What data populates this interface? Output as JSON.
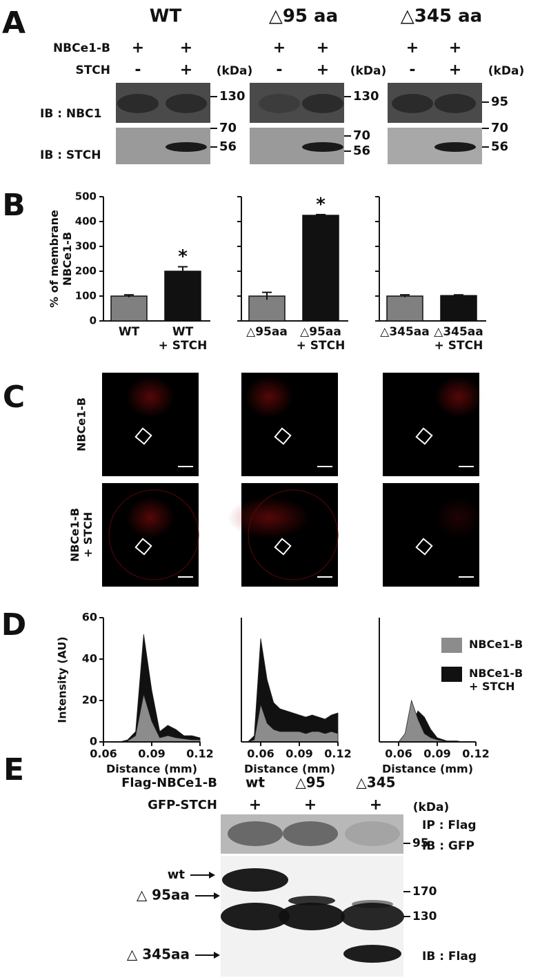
{
  "panel_labels": [
    "A",
    "B",
    "C",
    "D",
    "E"
  ],
  "panel_a": {
    "groups": [
      "WT",
      "△95 aa",
      "△345 aa"
    ],
    "row_labels": [
      "NBCe1-B",
      "STCH"
    ],
    "lanes": [
      [
        "+",
        "-"
      ],
      [
        "+",
        "+"
      ],
      [
        "+",
        "-"
      ],
      [
        "+",
        "+"
      ],
      [
        "+",
        "-"
      ],
      [
        "+",
        "+"
      ]
    ],
    "unit": "(kDa)",
    "blot_labels": [
      "IB : NBC1",
      "IB : STCH"
    ],
    "markers": [
      [
        130,
        70,
        56
      ],
      [
        130,
        70,
        56
      ],
      [
        95,
        70,
        56
      ]
    ]
  },
  "panel_c": {
    "row_labels": [
      "NBCe1-B",
      "NBCe1-B\n+ STCH"
    ]
  },
  "panel_e": {
    "row_labels": [
      "Flag-NBCe1-B",
      "GFP-STCH"
    ],
    "lanes": [
      [
        "wt",
        "+"
      ],
      [
        "△95",
        "+"
      ],
      [
        "△345",
        "+"
      ]
    ],
    "unit": "(kDa)",
    "top_blot_labels": [
      "IP : Flag",
      "IB : GFP"
    ],
    "top_markers": [
      95
    ],
    "bottom_blot_label": "IB : Flag",
    "bottom_markers": [
      170,
      130
    ],
    "band_labels": [
      "wt",
      "△ 95aa",
      "△ 345aa"
    ]
  },
  "chart_data": [
    {
      "type": "bar",
      "ylabel": "% of membrane\nNBCe1-B",
      "categories": [
        "WT",
        "WT\n+ STCH"
      ],
      "values": [
        100,
        200
      ],
      "errors": [
        5,
        18
      ],
      "colors": [
        "#808080",
        "#111111"
      ],
      "ylim": [
        0,
        500
      ],
      "yticks": [
        0,
        100,
        200,
        300,
        400,
        500
      ],
      "annotations": [
        {
          "category": 1,
          "text": "*"
        }
      ]
    },
    {
      "type": "bar",
      "categories": [
        "△95aa",
        "△95aa\n+ STCH"
      ],
      "values": [
        100,
        425
      ],
      "errors": [
        15,
        3
      ],
      "colors": [
        "#808080",
        "#111111"
      ],
      "ylim": [
        0,
        500
      ],
      "yticks": [
        0,
        100,
        200,
        300,
        400,
        500
      ],
      "tick_labels": false,
      "annotations": [
        {
          "category": 1,
          "text": "*"
        }
      ]
    },
    {
      "type": "bar",
      "categories": [
        "△345aa",
        "△345aa\n+ STCH"
      ],
      "values": [
        100,
        102
      ],
      "errors": [
        5,
        3
      ],
      "colors": [
        "#808080",
        "#111111"
      ],
      "ylim": [
        0,
        500
      ],
      "yticks": [
        0,
        100,
        200,
        300,
        400,
        500
      ],
      "tick_labels": false
    },
    {
      "type": "area",
      "ylabel": "Intensity (AU)",
      "xlabel": "Distance (mm)",
      "xlim": [
        0.06,
        0.12
      ],
      "ylim": [
        0,
        60
      ],
      "yticks": [
        0,
        20,
        40,
        60
      ],
      "xticks": [
        0.06,
        0.09,
        0.12
      ],
      "x": [
        0.06,
        0.065,
        0.07,
        0.075,
        0.08,
        0.085,
        0.09,
        0.095,
        0.1,
        0.105,
        0.11,
        0.115,
        0.12
      ],
      "series": [
        {
          "color": "#8c8c8c",
          "values": [
            0,
            0,
            0,
            0.5,
            3,
            23,
            10,
            2,
            3,
            2,
            1.5,
            1,
            1
          ]
        },
        {
          "color": "#111111",
          "values": [
            0,
            0,
            0,
            1,
            5,
            52,
            25,
            5,
            8,
            6,
            3,
            3,
            2
          ]
        }
      ]
    },
    {
      "type": "area",
      "xlabel": "Distance (mm)",
      "xlim": [
        0.045,
        0.12
      ],
      "ylim": [
        0,
        60
      ],
      "xticks": [
        0.06,
        0.09,
        0.12
      ],
      "x": [
        0.045,
        0.05,
        0.055,
        0.06,
        0.065,
        0.07,
        0.075,
        0.08,
        0.085,
        0.09,
        0.095,
        0.1,
        0.105,
        0.11,
        0.115,
        0.12
      ],
      "series": [
        {
          "color": "#8c8c8c",
          "values": [
            0,
            0,
            1,
            18,
            9,
            6,
            5,
            5,
            5,
            5,
            4,
            5,
            5,
            4,
            5,
            4
          ]
        },
        {
          "color": "#111111",
          "values": [
            0,
            0,
            3,
            50,
            30,
            19,
            16,
            15,
            14,
            13,
            12,
            13,
            12,
            11,
            13,
            14
          ]
        }
      ]
    },
    {
      "type": "area",
      "xlabel": "Distance (mm)",
      "xlim": [
        0.045,
        0.12
      ],
      "ylim": [
        0,
        60
      ],
      "xticks": [
        0.06,
        0.09,
        0.12
      ],
      "legend": "right",
      "x": [
        0.045,
        0.05,
        0.055,
        0.06,
        0.065,
        0.07,
        0.075,
        0.08,
        0.085,
        0.09,
        0.095,
        0.1,
        0.105,
        0.11,
        0.115,
        0.12
      ],
      "series": [
        {
          "name": "NBCe1-B",
          "color": "#8c8c8c",
          "values": [
            0,
            0,
            0,
            0,
            4,
            20,
            11,
            4,
            2,
            1,
            0.5,
            0.5,
            0.5,
            0,
            0,
            0
          ]
        },
        {
          "name": "NBCe1-B\n+ STCH",
          "color": "#111111",
          "values": [
            0,
            0,
            0,
            0,
            1,
            8,
            15,
            12,
            6,
            2,
            1,
            0,
            0,
            0,
            0,
            0
          ]
        }
      ]
    }
  ]
}
